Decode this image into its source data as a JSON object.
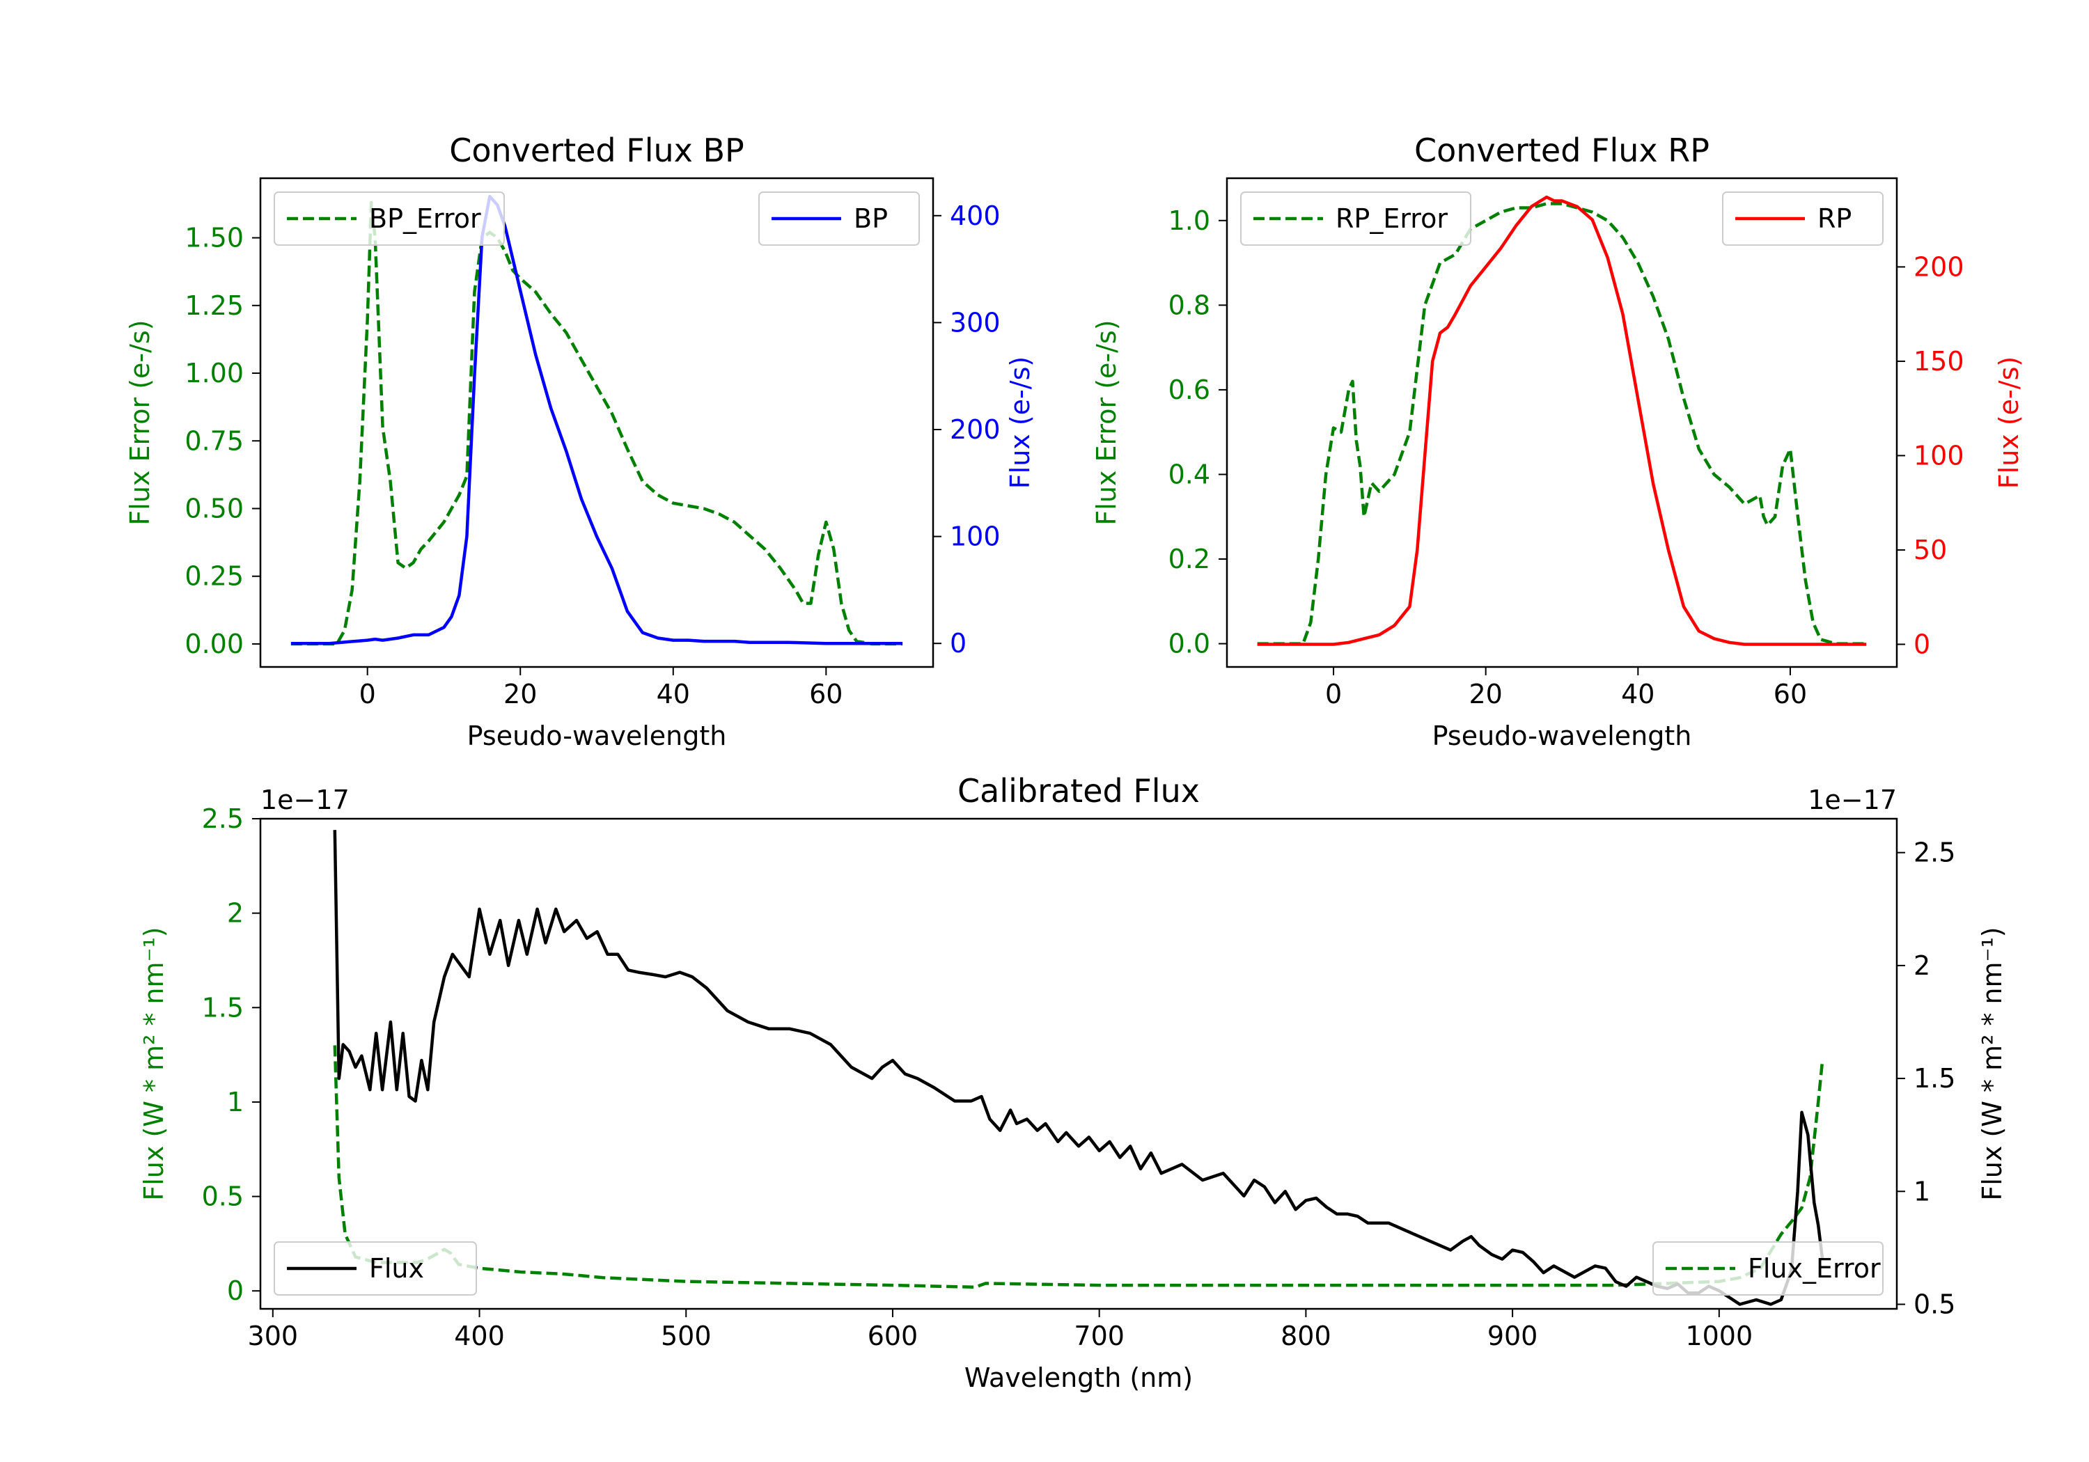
{
  "chart_data": [
    {
      "type": "line",
      "title": "Converted Flux BP",
      "xlabel": "Pseudo-wavelength",
      "ylabel_left": "Flux Error (e-/s)",
      "ylabel_right": "Flux (e-/s)",
      "xlim": [
        -14,
        74
      ],
      "ylim_left": [
        -0.085,
        1.72
      ],
      "ylim_right": [
        -22,
        435
      ],
      "xticks": [
        0,
        20,
        40,
        60
      ],
      "yticks_left": [
        0.0,
        0.25,
        0.5,
        0.75,
        1.0,
        1.25,
        1.5
      ],
      "yticks_left_labels": [
        "0.00",
        "0.25",
        "0.50",
        "0.75",
        "1.00",
        "1.25",
        "1.50"
      ],
      "yticks_right": [
        0,
        100,
        200,
        300,
        400
      ],
      "legend_left": {
        "label": "BP_Error",
        "position": "upper left"
      },
      "legend_right": {
        "label": "BP",
        "position": "upper right"
      },
      "colors": {
        "error": "#008000",
        "flux": "#0000ff",
        "left_axis": "#008000",
        "right_axis": "#0000ff"
      },
      "series": [
        {
          "name": "BP_Error",
          "axis": "left",
          "style": "dashed",
          "color": "#008000",
          "x": [
            -10,
            -4,
            -3,
            -2,
            -1,
            0,
            0.5,
            1,
            2,
            2.5,
            3,
            4,
            5,
            6,
            7,
            8,
            10,
            12,
            13,
            14,
            15,
            16,
            17,
            18,
            19,
            20,
            22,
            24,
            26,
            28,
            30,
            32,
            34,
            36,
            38,
            40,
            42,
            44,
            46,
            48,
            50,
            52,
            54,
            56,
            57,
            58,
            59,
            60,
            61,
            62,
            63,
            64,
            66,
            70
          ],
          "y": [
            0,
            0,
            0.05,
            0.2,
            0.6,
            1.2,
            1.63,
            1.5,
            0.8,
            0.7,
            0.6,
            0.3,
            0.28,
            0.3,
            0.35,
            0.38,
            0.45,
            0.55,
            0.62,
            1.3,
            1.5,
            1.52,
            1.5,
            1.45,
            1.38,
            1.35,
            1.3,
            1.22,
            1.15,
            1.05,
            0.95,
            0.85,
            0.72,
            0.6,
            0.55,
            0.52,
            0.51,
            0.5,
            0.48,
            0.45,
            0.4,
            0.35,
            0.28,
            0.2,
            0.15,
            0.15,
            0.33,
            0.45,
            0.35,
            0.15,
            0.05,
            0.01,
            0,
            0
          ]
        },
        {
          "name": "BP",
          "axis": "right",
          "style": "solid",
          "color": "#0000ff",
          "x": [
            -10,
            -5,
            0,
            1,
            2,
            4,
            6,
            8,
            10,
            11,
            12,
            13,
            14,
            15,
            16,
            17,
            18,
            20,
            22,
            24,
            26,
            28,
            30,
            32,
            34,
            36,
            38,
            40,
            42,
            44,
            46,
            48,
            50,
            55,
            60,
            62,
            64,
            66,
            70
          ],
          "y": [
            0,
            0,
            3,
            4,
            3,
            5,
            8,
            8,
            15,
            25,
            45,
            100,
            250,
            380,
            418,
            410,
            390,
            330,
            270,
            220,
            180,
            135,
            100,
            70,
            30,
            10,
            5,
            3,
            3,
            2,
            2,
            2,
            1,
            1,
            0,
            0,
            0,
            0,
            0
          ]
        }
      ]
    },
    {
      "type": "line",
      "title": "Converted Flux RP",
      "xlabel": "Pseudo-wavelength",
      "ylabel_left": "Flux Error (e-/s)",
      "ylabel_right": "Flux (e-/s)",
      "xlim": [
        -14,
        74
      ],
      "ylim_left": [
        -0.055,
        1.1
      ],
      "ylim_right": [
        -12,
        247
      ],
      "xticks": [
        0,
        20,
        40,
        60
      ],
      "yticks_left": [
        0.0,
        0.2,
        0.4,
        0.6,
        0.8,
        1.0
      ],
      "yticks_left_labels": [
        "0.0",
        "0.2",
        "0.4",
        "0.6",
        "0.8",
        "1.0"
      ],
      "yticks_right": [
        0,
        50,
        100,
        150,
        200
      ],
      "legend_left": {
        "label": "RP_Error",
        "position": "upper left"
      },
      "legend_right": {
        "label": "RP",
        "position": "upper right"
      },
      "colors": {
        "error": "#008000",
        "flux": "#ff0000",
        "left_axis": "#008000",
        "right_axis": "#ff0000"
      },
      "series": [
        {
          "name": "RP_Error",
          "axis": "left",
          "style": "dashed",
          "color": "#008000",
          "x": [
            -10,
            -4,
            -3,
            -2,
            -1,
            0,
            1,
            2,
            2.5,
            3,
            3.5,
            4,
            5,
            6,
            8,
            10,
            12,
            14,
            16,
            18,
            20,
            22,
            24,
            26,
            28,
            30,
            32,
            34,
            36,
            38,
            40,
            42,
            44,
            46,
            48,
            50,
            52,
            54,
            56,
            56.5,
            57,
            58,
            59,
            60,
            61,
            62,
            63,
            64,
            66,
            70
          ],
          "y": [
            0,
            0,
            0.05,
            0.2,
            0.4,
            0.51,
            0.5,
            0.6,
            0.62,
            0.48,
            0.42,
            0.3,
            0.38,
            0.36,
            0.4,
            0.5,
            0.8,
            0.9,
            0.92,
            0.98,
            1.0,
            1.02,
            1.03,
            1.03,
            1.04,
            1.04,
            1.03,
            1.02,
            1.0,
            0.96,
            0.9,
            0.82,
            0.72,
            0.58,
            0.46,
            0.4,
            0.37,
            0.33,
            0.35,
            0.3,
            0.28,
            0.3,
            0.42,
            0.46,
            0.3,
            0.15,
            0.05,
            0.01,
            0,
            0
          ]
        },
        {
          "name": "RP",
          "axis": "right",
          "style": "solid",
          "color": "#ff0000",
          "x": [
            -10,
            -5,
            0,
            2,
            4,
            6,
            8,
            10,
            11,
            12,
            13,
            14,
            15,
            16,
            18,
            20,
            22,
            24,
            26,
            28,
            29,
            30,
            32,
            34,
            36,
            38,
            40,
            42,
            44,
            46,
            48,
            50,
            52,
            54,
            56,
            58,
            60,
            62,
            66,
            70
          ],
          "y": [
            0,
            0,
            0,
            1,
            3,
            5,
            10,
            20,
            50,
            100,
            150,
            165,
            168,
            175,
            190,
            200,
            210,
            222,
            232,
            237,
            235,
            235,
            232,
            225,
            205,
            175,
            130,
            85,
            50,
            20,
            7,
            3,
            1,
            0,
            0,
            0,
            0,
            0,
            0,
            0
          ]
        }
      ]
    },
    {
      "type": "line",
      "title": "Calibrated Flux",
      "xlabel": "Wavelength (nm)",
      "ylabel_left": "Flux (W * m² * nm⁻¹)",
      "ylabel_right": "Flux (W * m² * nm⁻¹)",
      "offset_left": "1e−17",
      "offset_right": "1e−17",
      "xlim": [
        294,
        1086
      ],
      "ylim_left": [
        -0.095,
        2.5
      ],
      "ylim_right": [
        0.48,
        2.65
      ],
      "xticks": [
        300,
        400,
        500,
        600,
        700,
        800,
        900,
        1000
      ],
      "yticks_left": [
        0.0,
        0.5,
        1.0,
        1.5,
        2.0,
        2.5
      ],
      "yticks_right": [
        0.5,
        1.0,
        1.5,
        2.0,
        2.5
      ],
      "legend_left": {
        "label": "Flux",
        "position": "lower left"
      },
      "legend_right": {
        "label": "Flux_Error",
        "position": "lower right"
      },
      "colors": {
        "error": "#008000",
        "flux": "#000000",
        "left_axis": "#008000",
        "right_axis": "#000000"
      },
      "series": [
        {
          "name": "Flux_Error",
          "axis": "left",
          "style": "dashed",
          "color": "#008000",
          "x": [
            330,
            332,
            335,
            340,
            350,
            360,
            370,
            375,
            380,
            383,
            386,
            390,
            400,
            420,
            440,
            460,
            500,
            550,
            600,
            640,
            645,
            700,
            800,
            900,
            950,
            1000,
            1010,
            1020,
            1030,
            1036,
            1040,
            1044,
            1046,
            1048,
            1050
          ],
          "y": [
            1.3,
            0.6,
            0.3,
            0.18,
            0.15,
            0.15,
            0.15,
            0.17,
            0.2,
            0.22,
            0.2,
            0.14,
            0.12,
            0.1,
            0.09,
            0.07,
            0.05,
            0.04,
            0.03,
            0.02,
            0.04,
            0.03,
            0.03,
            0.03,
            0.03,
            0.05,
            0.07,
            0.12,
            0.3,
            0.38,
            0.44,
            0.6,
            0.8,
            1.0,
            1.22
          ]
        },
        {
          "name": "Flux",
          "axis": "right",
          "style": "solid",
          "color": "#000000",
          "x": [
            330,
            332,
            334,
            337,
            340,
            343,
            347,
            350,
            353,
            357,
            360,
            363,
            366,
            369,
            372,
            375,
            378,
            383,
            387,
            391,
            395,
            400,
            405,
            410,
            414,
            419,
            423,
            428,
            432,
            437,
            441,
            447,
            452,
            457,
            462,
            467,
            472,
            477,
            484,
            490,
            497,
            503,
            510,
            520,
            530,
            540,
            550,
            560,
            570,
            580,
            590,
            595,
            600,
            606,
            612,
            620,
            630,
            638,
            643,
            647,
            652,
            657,
            660,
            665,
            670,
            674,
            680,
            684,
            690,
            695,
            700,
            705,
            710,
            715,
            720,
            725,
            730,
            740,
            750,
            760,
            770,
            775,
            780,
            785,
            790,
            795,
            800,
            805,
            810,
            815,
            820,
            825,
            830,
            840,
            850,
            860,
            870,
            876,
            880,
            884,
            890,
            895,
            900,
            905,
            910,
            915,
            920,
            930,
            940,
            945,
            950,
            955,
            960,
            965,
            970,
            975,
            980,
            985,
            990,
            995,
            1000,
            1005,
            1010,
            1018,
            1025,
            1030,
            1035,
            1038,
            1040,
            1043,
            1046,
            1048,
            1050
          ],
          "y": [
            2.6,
            1.5,
            1.65,
            1.62,
            1.55,
            1.6,
            1.45,
            1.7,
            1.45,
            1.75,
            1.45,
            1.7,
            1.42,
            1.4,
            1.58,
            1.45,
            1.75,
            1.95,
            2.05,
            2.0,
            1.95,
            2.25,
            2.05,
            2.2,
            2.0,
            2.2,
            2.05,
            2.25,
            2.1,
            2.25,
            2.15,
            2.2,
            2.12,
            2.15,
            2.05,
            2.05,
            1.98,
            1.97,
            1.96,
            1.95,
            1.97,
            1.95,
            1.9,
            1.8,
            1.75,
            1.72,
            1.72,
            1.7,
            1.65,
            1.55,
            1.5,
            1.55,
            1.58,
            1.52,
            1.5,
            1.46,
            1.4,
            1.4,
            1.42,
            1.32,
            1.27,
            1.36,
            1.3,
            1.32,
            1.27,
            1.3,
            1.22,
            1.26,
            1.2,
            1.24,
            1.18,
            1.22,
            1.15,
            1.2,
            1.1,
            1.17,
            1.08,
            1.12,
            1.05,
            1.08,
            0.98,
            1.05,
            1.02,
            0.95,
            1.0,
            0.92,
            0.96,
            0.97,
            0.93,
            0.9,
            0.9,
            0.89,
            0.86,
            0.86,
            0.82,
            0.78,
            0.74,
            0.78,
            0.8,
            0.76,
            0.72,
            0.7,
            0.74,
            0.73,
            0.69,
            0.64,
            0.67,
            0.62,
            0.67,
            0.66,
            0.6,
            0.58,
            0.62,
            0.6,
            0.58,
            0.57,
            0.59,
            0.55,
            0.55,
            0.58,
            0.56,
            0.53,
            0.5,
            0.52,
            0.5,
            0.52,
            0.65,
            1.0,
            1.35,
            1.25,
            0.95,
            0.85,
            0.7
          ]
        }
      ]
    }
  ]
}
